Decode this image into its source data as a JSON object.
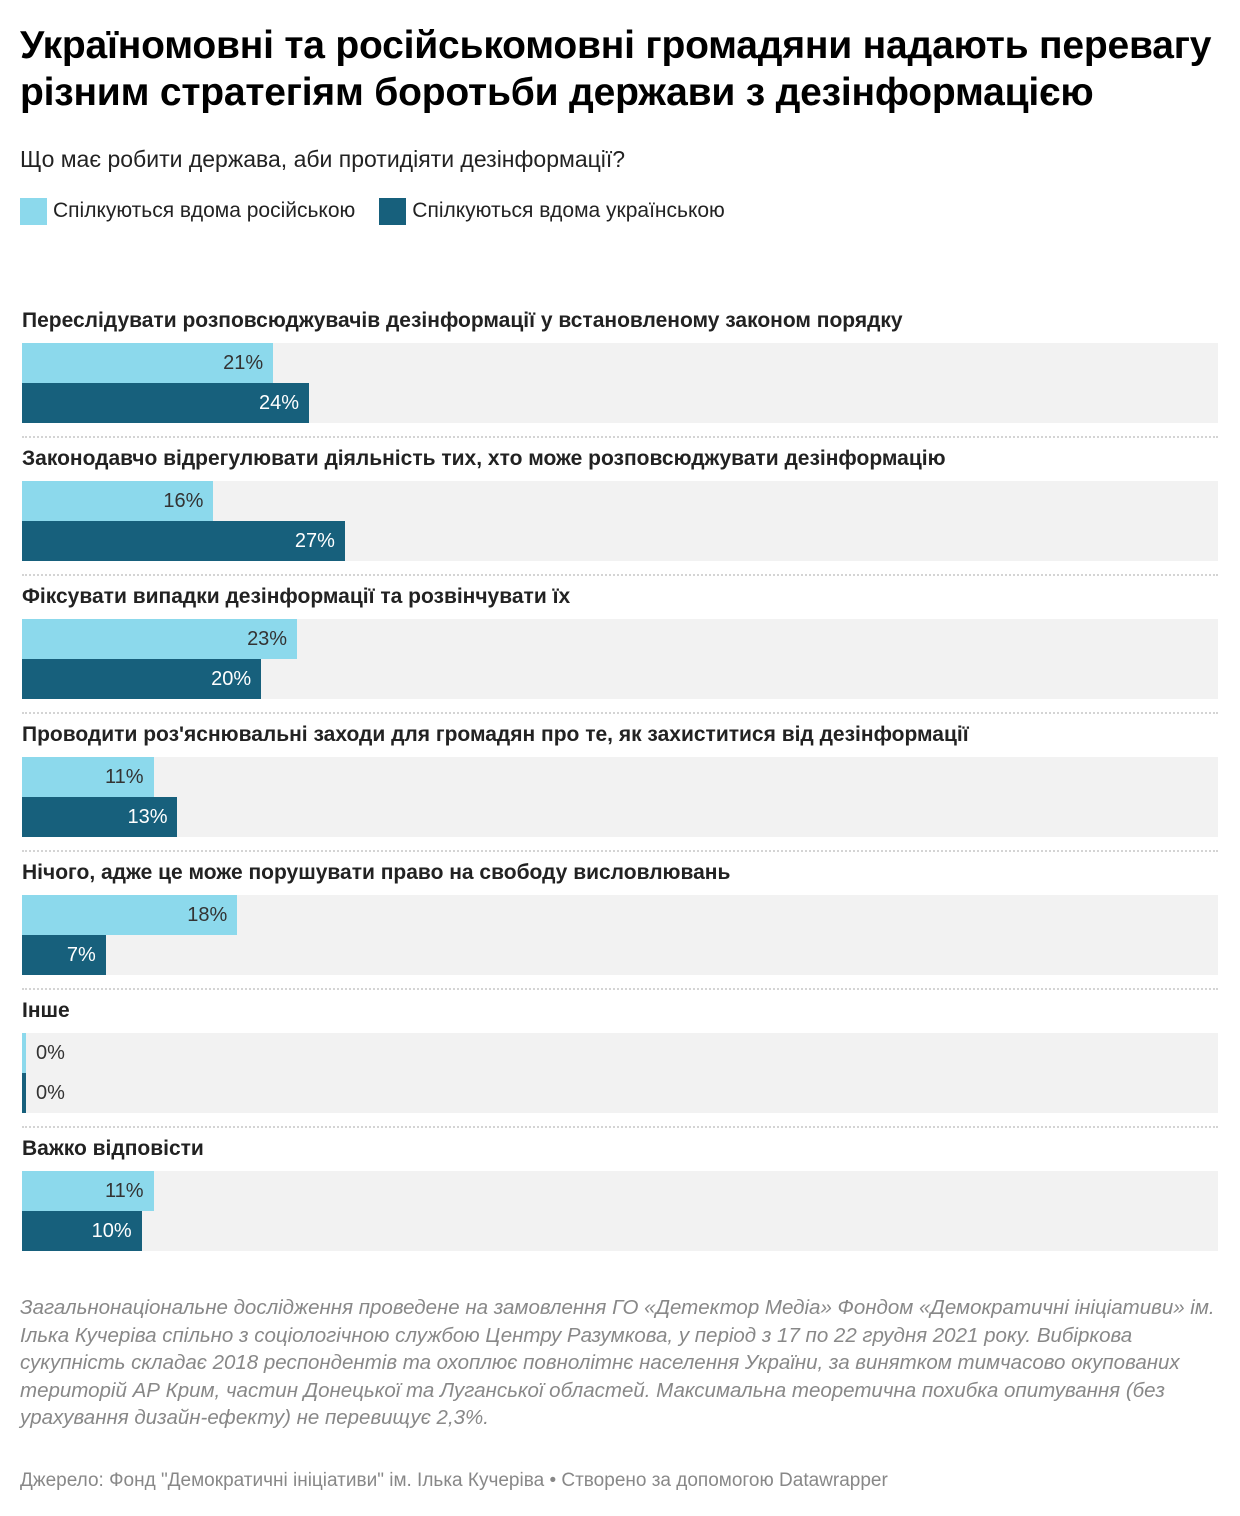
{
  "title": "Україномовні та російськомовні громадяни надають перевагу різним стратегіям боротьби держави з дезінформацією",
  "subtitle": "Що має робити держава, аби протидіяти дезінформації?",
  "legend": [
    {
      "label": "Спілкуються вдома російською",
      "color": "#8cd9ec"
    },
    {
      "label": "Спілкуються вдома українською",
      "color": "#17607c"
    }
  ],
  "chart_data": {
    "type": "bar",
    "orientation": "horizontal",
    "xlim": [
      0,
      100
    ],
    "value_suffix": "%",
    "categories": [
      "Переслідувати розповсюджувачів дезінформації у встановленому законом порядку",
      "Законодавчо відрегулювати діяльність тих, хто може розповсюджувати дезінформацію",
      "Фіксувати випадки дезінформації та розвінчувати їх",
      "Проводити роз'яснювальні заходи для громадян про те, як захиститися від дезінформації",
      "Нічого, адже це може порушувати право на свободу висловлювань",
      "Інше",
      "Важко відповісти"
    ],
    "series": [
      {
        "name": "Спілкуються вдома російською",
        "color": "#8cd9ec",
        "values": [
          21,
          16,
          23,
          11,
          18,
          0,
          11
        ]
      },
      {
        "name": "Спілкуються вдома українською",
        "color": "#17607c",
        "values": [
          24,
          27,
          20,
          13,
          7,
          0,
          10
        ]
      }
    ]
  },
  "footer": {
    "note": "Загальнонаціональне дослідження проведене на замовлення ГО «Детектор Медіа» Фондом «Демократичні ініціативи» ім. Ілька Кучеріва спільно з соціологічною службою Центру Разумкова, у період з 17 по 22 грудня 2021 року. Вибіркова сукупність складає 2018 респондентів та охоплює повнолітнє населення України, за винятком тимчасово окупованих територій АР Крим, частин Донецької та Луганської областей. Максимальна теоретична похибка опитування (без урахування дизайн-ефекту) не перевищує 2,3%.",
    "source": "Джерело: Фонд \"Демократичні ініціативи\" ім. Ілька Кучеріва • Створено за допомогою Datawrapper"
  }
}
